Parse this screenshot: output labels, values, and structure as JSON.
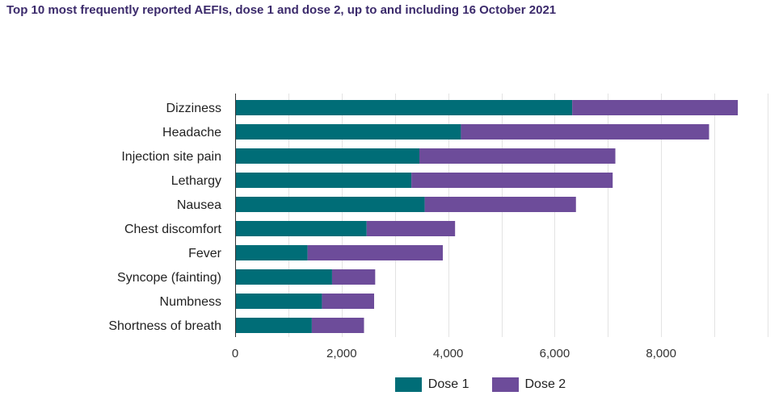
{
  "colors": {
    "title": "#3b2a6b",
    "dose1": "#006d77",
    "dose2": "#6d4c9a",
    "grid": "#e3e3e3",
    "axis": "#333333"
  },
  "chart_data": {
    "type": "bar",
    "orientation": "horizontal",
    "stacked": true,
    "title": "Top 10 most frequently reported AEFIs, dose 1 and dose 2, up to and including 16 October 2021",
    "xlabel": "",
    "ylabel": "",
    "categories": [
      "Dizziness",
      "Headache",
      "Injection site pain",
      "Lethargy",
      "Nausea",
      "Chest discomfort",
      "Fever",
      "Syncope (fainting)",
      "Numbness",
      "Shortness of breath"
    ],
    "series": [
      {
        "name": "Dose 1",
        "color": "#006d77",
        "values": [
          6330,
          4240,
          3460,
          3310,
          3560,
          2470,
          1360,
          1820,
          1630,
          1440
        ]
      },
      {
        "name": "Dose 2",
        "color": "#6d4c9a",
        "values": [
          3110,
          4660,
          3680,
          3780,
          2840,
          1660,
          2540,
          810,
          980,
          980
        ]
      }
    ],
    "xlim": [
      0,
      10000
    ],
    "xticks": [
      0,
      2000,
      4000,
      6000,
      8000
    ],
    "xtick_labels": [
      "0",
      "2,000",
      "4,000",
      "6,000",
      "8,000"
    ],
    "grid": true,
    "legend_position": "bottom"
  }
}
